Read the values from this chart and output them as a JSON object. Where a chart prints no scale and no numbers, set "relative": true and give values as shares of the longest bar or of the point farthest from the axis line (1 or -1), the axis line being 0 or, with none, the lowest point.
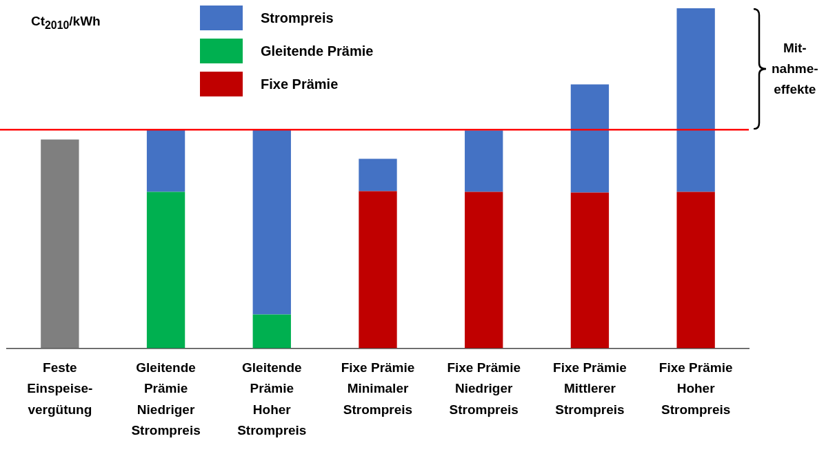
{
  "chart_data": {
    "type": "bar",
    "stacked": true,
    "relative": true,
    "ylabel": "Ct$_{2010}$/kWh",
    "categories": [
      "Feste\nEinspeise-\nvergütung",
      "Gleitende\nPrämie\nNiedriger\nStrompreis",
      "Gleitende\nPrämie\nHoher\nStrompreis",
      "Fixe Prämie\nMinimaler\nStrompreis",
      "Fixe Prämie\nNiedriger\nStrompreis",
      "Fixe Prämie\nMittlerer\nStrompreis",
      "Fixe Prämie\nHoher\nStrompreis"
    ],
    "series": [
      {
        "color": "#7f7f7f",
        "values": [
          0.614,
          null,
          null,
          null,
          null,
          null,
          null
        ]
      },
      {
        "name": "Fixe Prämie",
        "color": "#c00000",
        "values": [
          null,
          null,
          null,
          0.462,
          0.46,
          0.458,
          0.46
        ]
      },
      {
        "name": "Gleitende Prämie",
        "color": "#00b050",
        "values": [
          null,
          0.46,
          0.099,
          null,
          null,
          null,
          null
        ]
      },
      {
        "name": "Strompreis",
        "color": "#4472c4",
        "values": [
          null,
          0.183,
          0.544,
          0.095,
          0.181,
          0.318,
          0.54
        ]
      }
    ],
    "ref_lines": [
      {
        "axis": "y",
        "value": 0.643,
        "color": "#ff0000"
      }
    ],
    "annotations": [
      "Mit-\nnahme-\neffekte"
    ],
    "legend": "top left",
    "grid": false
  }
}
